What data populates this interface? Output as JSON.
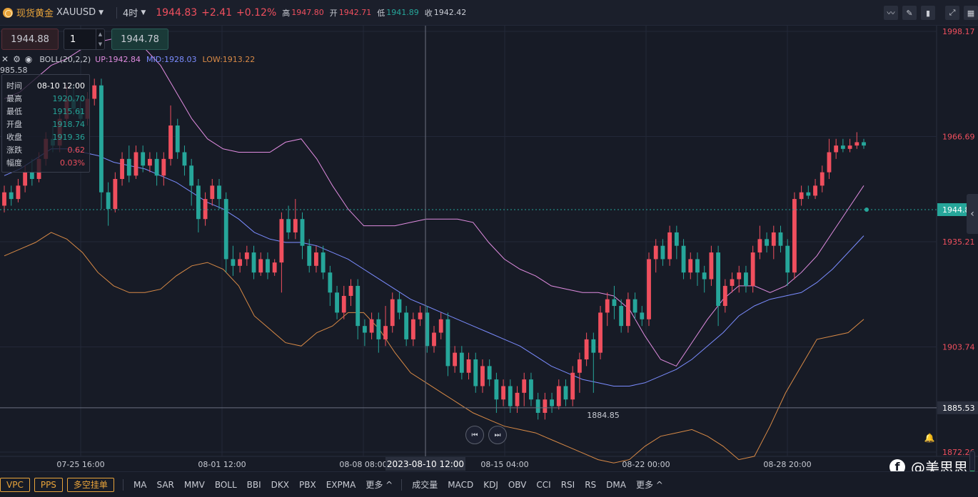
{
  "topbar": {
    "symbol_cn": "现货黄金",
    "symbol_code": "XAUUSD",
    "period": "4时",
    "price": "1944.83",
    "change": "+2.41",
    "change_pct": "+0.12%",
    "high_label": "高",
    "high": "1947.80",
    "open_label": "开",
    "open": "1942.71",
    "low_label": "低",
    "low": "1941.89",
    "close_label": "收",
    "close": "1942.42",
    "tool_icons": [
      "line-chart-icon",
      "pencil-icon",
      "candles-icon",
      "expand-icon",
      "grid-icon"
    ]
  },
  "trade": {
    "sell_price": "1944.88",
    "quantity": "1",
    "buy_price": "1944.78"
  },
  "indicator": {
    "name": "BOLL(20,2,2)",
    "up": "UP:1942.84",
    "mid": "MID:1928.03",
    "low": "LOW:1913.22",
    "max_label": "985.58"
  },
  "tooltip": {
    "rows": [
      {
        "k": "时间",
        "v": "08-10 12:00",
        "tone": "w"
      },
      {
        "k": "最高",
        "v": "1920.70",
        "tone": "g"
      },
      {
        "k": "最低",
        "v": "1915.61",
        "tone": "g"
      },
      {
        "k": "开盘",
        "v": "1918.74",
        "tone": "g"
      },
      {
        "k": "收盘",
        "v": "1919.36",
        "tone": "g"
      },
      {
        "k": "涨跌",
        "v": "0.62",
        "tone": "r"
      },
      {
        "k": "幅度",
        "v": "0.03%",
        "tone": "r"
      }
    ]
  },
  "chart_data": {
    "type": "candlestick",
    "y_ticks": [
      {
        "label": "1998.17",
        "value": 1998.17
      },
      {
        "label": "1966.69",
        "value": 1966.69
      },
      {
        "label": "1935.21",
        "value": 1935.21
      },
      {
        "label": "1903.74",
        "value": 1903.74
      },
      {
        "label": "1872.26",
        "value": 1872.26
      }
    ],
    "x_ticks": [
      "07-25 16:00",
      "08-01 12:00",
      "08-08 08:00",
      "08-15 04:00",
      "08-22 00:00",
      "08-28 20:00"
    ],
    "crosshair_time": "2023-08-10 12:00",
    "crosshair_price": "1885.53",
    "current_price": "1944.82",
    "min_marker": "1884.85",
    "colors": {
      "up": "#f04f5e",
      "down": "#26a69a",
      "boll_up": "#e08ce0",
      "boll_mid": "#7b8cff",
      "boll_low": "#d98a46"
    },
    "boll_up": [
      1978,
      1980,
      1984,
      1988,
      1990,
      1993,
      1995,
      1996,
      1995,
      1993,
      1988,
      1980,
      1972,
      1966,
      1963,
      1962,
      1962,
      1962,
      1965,
      1966,
      1960,
      1952,
      1945,
      1940,
      1940,
      1940,
      1941,
      1942,
      1942,
      1942,
      1941,
      1935,
      1930,
      1927,
      1925,
      1922,
      1921,
      1920,
      1920,
      1919,
      1915,
      1907,
      1900,
      1898,
      1905,
      1912,
      1918,
      1922,
      1922,
      1920,
      1922,
      1926,
      1931,
      1938,
      1945,
      1952
    ],
    "boll_mid": [
      1955,
      1957,
      1960,
      1963,
      1963,
      1962,
      1961,
      1959,
      1958,
      1957,
      1955,
      1953,
      1950,
      1947,
      1945,
      1942,
      1938,
      1936,
      1935,
      1935,
      1934,
      1932,
      1930,
      1927,
      1924,
      1921,
      1918,
      1916,
      1914,
      1912,
      1910,
      1908,
      1906,
      1904,
      1901,
      1898,
      1896,
      1894,
      1893,
      1892,
      1892,
      1893,
      1895,
      1897,
      1900,
      1904,
      1908,
      1913,
      1916,
      1918,
      1919,
      1920,
      1923,
      1927,
      1932,
      1937
    ],
    "boll_low": [
      1931,
      1933,
      1935,
      1938,
      1936,
      1932,
      1926,
      1922,
      1920,
      1920,
      1921,
      1925,
      1928,
      1929,
      1927,
      1922,
      1913,
      1909,
      1905,
      1904,
      1908,
      1910,
      1914,
      1914,
      1909,
      1902,
      1896,
      1893,
      1890,
      1887,
      1884,
      1882,
      1880,
      1879,
      1878,
      1876,
      1874,
      1872,
      1870,
      1869,
      1870,
      1874,
      1877,
      1878,
      1879,
      1877,
      1874,
      1870,
      1871,
      1880,
      1890,
      1898,
      1906,
      1907,
      1908,
      1912
    ],
    "candles": [
      [
        1946,
        1950,
        1944,
        1952
      ],
      [
        1950,
        1948,
        1946,
        1952
      ],
      [
        1948,
        1952,
        1947,
        1954
      ],
      [
        1952,
        1956,
        1950,
        1958
      ],
      [
        1956,
        1954,
        1952,
        1960
      ],
      [
        1954,
        1960,
        1953,
        1962
      ],
      [
        1960,
        1966,
        1958,
        1968
      ],
      [
        1966,
        1964,
        1962,
        1970
      ],
      [
        1964,
        1972,
        1962,
        1974
      ],
      [
        1972,
        1978,
        1970,
        1982
      ],
      [
        1978,
        1975,
        1973,
        1982
      ],
      [
        1975,
        1972,
        1970,
        1978
      ],
      [
        1972,
        1978,
        1970,
        1980
      ],
      [
        1978,
        1982,
        1976,
        1984
      ],
      [
        1982,
        1950,
        1945,
        1984
      ],
      [
        1950,
        1945,
        1940,
        1953
      ],
      [
        1945,
        1954,
        1944,
        1956
      ],
      [
        1954,
        1960,
        1952,
        1962
      ],
      [
        1960,
        1955,
        1953,
        1964
      ],
      [
        1955,
        1962,
        1954,
        1964
      ],
      [
        1962,
        1958,
        1956,
        1964
      ],
      [
        1958,
        1960,
        1956,
        1962
      ],
      [
        1960,
        1955,
        1952,
        1962
      ],
      [
        1955,
        1960,
        1952,
        1962
      ],
      [
        1960,
        1970,
        1958,
        1976
      ],
      [
        1970,
        1962,
        1960,
        1972
      ],
      [
        1962,
        1958,
        1955,
        1964
      ],
      [
        1958,
        1952,
        1946,
        1960
      ],
      [
        1952,
        1942,
        1938,
        1954
      ],
      [
        1942,
        1948,
        1940,
        1950
      ],
      [
        1948,
        1952,
        1946,
        1954
      ],
      [
        1952,
        1948,
        1945,
        1954
      ],
      [
        1948,
        1930,
        1926,
        1950
      ],
      [
        1930,
        1928,
        1925,
        1934
      ],
      [
        1928,
        1930,
        1926,
        1932
      ],
      [
        1930,
        1932,
        1928,
        1934
      ],
      [
        1932,
        1926,
        1924,
        1934
      ],
      [
        1926,
        1930,
        1925,
        1932
      ],
      [
        1930,
        1926,
        1924,
        1932
      ],
      [
        1926,
        1929,
        1925,
        1930
      ],
      [
        1929,
        1942,
        1920,
        1944
      ],
      [
        1942,
        1938,
        1936,
        1946
      ],
      [
        1938,
        1942,
        1936,
        1948
      ],
      [
        1942,
        1934,
        1930,
        1944
      ],
      [
        1934,
        1928,
        1926,
        1936
      ],
      [
        1928,
        1932,
        1926,
        1934
      ],
      [
        1932,
        1926,
        1924,
        1934
      ],
      [
        1926,
        1920,
        1916,
        1928
      ],
      [
        1920,
        1914,
        1912,
        1922
      ],
      [
        1914,
        1919,
        1912,
        1922
      ],
      [
        1919,
        1922,
        1916,
        1924
      ],
      [
        1922,
        1910,
        1906,
        1924
      ],
      [
        1910,
        1908,
        1904,
        1912
      ],
      [
        1908,
        1912,
        1906,
        1914
      ],
      [
        1912,
        1906,
        1902,
        1914
      ],
      [
        1906,
        1910,
        1904,
        1916
      ],
      [
        1910,
        1918,
        1908,
        1920
      ],
      [
        1918,
        1914,
        1912,
        1920
      ],
      [
        1914,
        1906,
        1904,
        1916
      ],
      [
        1906,
        1912,
        1904,
        1914
      ],
      [
        1912,
        1914,
        1910,
        1916
      ],
      [
        1914,
        1904,
        1902,
        1916
      ],
      [
        1904,
        1908,
        1902,
        1910
      ],
      [
        1908,
        1912,
        1906,
        1914
      ],
      [
        1912,
        1898,
        1895,
        1914
      ],
      [
        1898,
        1902,
        1896,
        1904
      ],
      [
        1902,
        1896,
        1894,
        1904
      ],
      [
        1896,
        1900,
        1894,
        1902
      ],
      [
        1900,
        1892,
        1890,
        1902
      ],
      [
        1892,
        1898,
        1890,
        1900
      ],
      [
        1898,
        1894,
        1892,
        1900
      ],
      [
        1894,
        1888,
        1884,
        1896
      ],
      [
        1888,
        1892,
        1886,
        1894
      ],
      [
        1892,
        1886,
        1884,
        1894
      ],
      [
        1886,
        1890,
        1884,
        1892
      ],
      [
        1890,
        1894,
        1886,
        1896
      ],
      [
        1894,
        1888,
        1886,
        1896
      ],
      [
        1888,
        1884,
        1882,
        1890
      ],
      [
        1884,
        1888,
        1882,
        1890
      ],
      [
        1888,
        1886,
        1884,
        1890
      ],
      [
        1886,
        1892,
        1885,
        1894
      ],
      [
        1892,
        1888,
        1886,
        1894
      ],
      [
        1888,
        1896,
        1886,
        1898
      ],
      [
        1896,
        1900,
        1890,
        1902
      ],
      [
        1900,
        1906,
        1898,
        1908
      ],
      [
        1906,
        1902,
        1890,
        1908
      ],
      [
        1902,
        1914,
        1900,
        1916
      ],
      [
        1914,
        1918,
        1910,
        1920
      ],
      [
        1918,
        1916,
        1912,
        1922
      ],
      [
        1916,
        1910,
        1908,
        1918
      ],
      [
        1910,
        1918,
        1908,
        1920
      ],
      [
        1918,
        1914,
        1912,
        1920
      ],
      [
        1914,
        1912,
        1910,
        1916
      ],
      [
        1912,
        1930,
        1910,
        1932
      ],
      [
        1930,
        1934,
        1926,
        1936
      ],
      [
        1934,
        1930,
        1928,
        1936
      ],
      [
        1930,
        1938,
        1928,
        1940
      ],
      [
        1938,
        1934,
        1930,
        1940
      ],
      [
        1934,
        1926,
        1924,
        1936
      ],
      [
        1926,
        1930,
        1924,
        1932
      ],
      [
        1930,
        1926,
        1922,
        1932
      ],
      [
        1926,
        1924,
        1920,
        1928
      ],
      [
        1924,
        1932,
        1922,
        1934
      ],
      [
        1932,
        1916,
        1910,
        1934
      ],
      [
        1916,
        1922,
        1914,
        1924
      ],
      [
        1922,
        1924,
        1920,
        1926
      ],
      [
        1924,
        1926,
        1920,
        1928
      ],
      [
        1926,
        1922,
        1920,
        1928
      ],
      [
        1922,
        1932,
        1920,
        1934
      ],
      [
        1932,
        1936,
        1930,
        1940
      ],
      [
        1936,
        1934,
        1932,
        1938
      ],
      [
        1934,
        1938,
        1930,
        1940
      ],
      [
        1938,
        1934,
        1932,
        1940
      ],
      [
        1934,
        1926,
        1922,
        1936
      ],
      [
        1926,
        1948,
        1924,
        1950
      ],
      [
        1948,
        1950,
        1946,
        1952
      ],
      [
        1950,
        1949,
        1948,
        1952
      ],
      [
        1949,
        1952,
        1948,
        1954
      ],
      [
        1952,
        1956,
        1950,
        1958
      ],
      [
        1956,
        1962,
        1954,
        1966
      ],
      [
        1962,
        1964,
        1960,
        1966
      ],
      [
        1964,
        1963,
        1962,
        1966
      ],
      [
        1963,
        1964,
        1962,
        1966
      ],
      [
        1964,
        1965,
        1963,
        1968
      ],
      [
        1965,
        1964,
        1963,
        1966
      ]
    ]
  },
  "bottombar": {
    "tags": [
      "VPC",
      "PPS",
      "多空挂单"
    ],
    "main_indicators": [
      "MA",
      "SAR",
      "MMV",
      "BOLL",
      "BBI",
      "DKX",
      "PBX",
      "EXPMA",
      "更多 ^"
    ],
    "sub_indicators": [
      "成交量",
      "MACD",
      "KDJ",
      "OBV",
      "CCI",
      "RSI",
      "RS",
      "DMA",
      "更多 ^"
    ]
  },
  "brand": {
    "text": "@美思思"
  },
  "volume_level": 0.55
}
